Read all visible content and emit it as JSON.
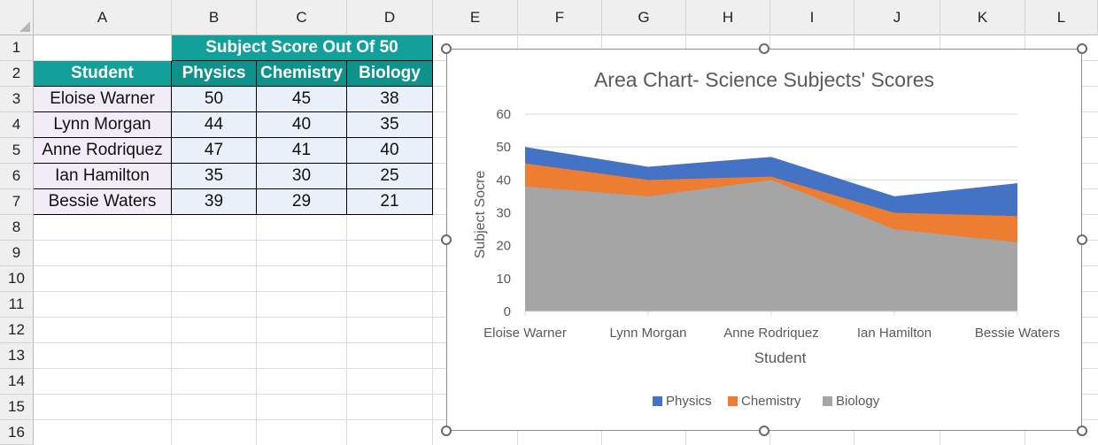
{
  "sheet": {
    "columns": [
      "A",
      "B",
      "C",
      "D",
      "E",
      "F",
      "G",
      "H",
      "I",
      "J",
      "K",
      "L"
    ],
    "rows": [
      "1",
      "2",
      "3",
      "4",
      "5",
      "6",
      "7",
      "8",
      "9",
      "10",
      "11",
      "12",
      "13",
      "14",
      "15",
      "16"
    ],
    "title_cell": "Subject Score Out Of 50",
    "headers": [
      "Student",
      "Physics",
      "Chemistry",
      "Biology"
    ],
    "data": [
      [
        "Eloise Warner",
        "50",
        "45",
        "38"
      ],
      [
        "Lynn Morgan",
        "44",
        "40",
        "35"
      ],
      [
        "Anne Rodriquez",
        "47",
        "41",
        "40"
      ],
      [
        "Ian Hamilton",
        "35",
        "30",
        "25"
      ],
      [
        "Bessie Waters",
        "39",
        "29",
        "21"
      ]
    ]
  },
  "colors": {
    "physics": "#4472c4",
    "chemistry": "#ed7d31",
    "biology": "#a5a5a5",
    "header_teal": "#13a09a"
  },
  "chart_data": {
    "type": "area",
    "stacked": false,
    "title": "Area Chart- Science Subjects' Scores",
    "xlabel": "Student",
    "ylabel": "Subject Socre",
    "categories": [
      "Eloise Warner",
      "Lynn Morgan",
      "Anne Rodriquez",
      "Ian Hamilton",
      "Bessie Waters"
    ],
    "series": [
      {
        "name": "Physics",
        "values": [
          50,
          44,
          47,
          35,
          39
        ],
        "color": "#4472c4"
      },
      {
        "name": "Chemistry",
        "values": [
          45,
          40,
          41,
          30,
          29
        ],
        "color": "#ed7d31"
      },
      {
        "name": "Biology",
        "values": [
          38,
          35,
          40,
          25,
          21
        ],
        "color": "#a5a5a5"
      }
    ],
    "ylim": [
      0,
      60
    ],
    "yticks": [
      "0",
      "10",
      "20",
      "30",
      "40",
      "50",
      "60"
    ],
    "grid": true,
    "legend": "bottom"
  }
}
